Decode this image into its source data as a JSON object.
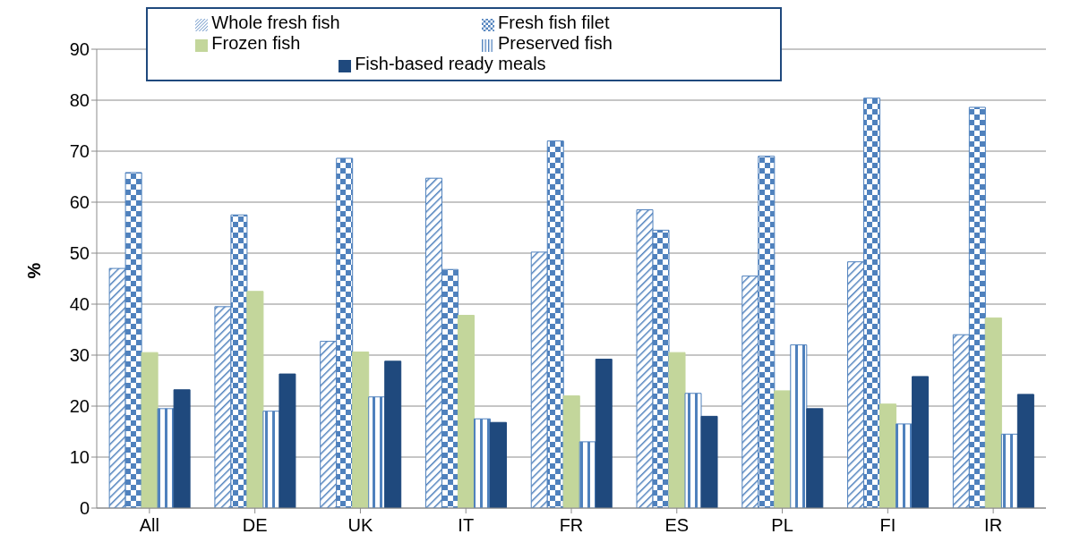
{
  "chart_data": {
    "type": "bar",
    "ylabel": "%",
    "categories": [
      "All",
      "DE",
      "UK",
      "IT",
      "FR",
      "ES",
      "PL",
      "FI",
      "IR"
    ],
    "series": [
      {
        "name": "Whole fresh fish",
        "color": "#4f81bd",
        "values": [
          47,
          39.5,
          32.7,
          64.7,
          50.2,
          58.5,
          45.5,
          48.3,
          34
        ]
      },
      {
        "name": "Fresh fish filet",
        "color": "#4f81bd",
        "values": [
          65.8,
          57.5,
          68.6,
          46.8,
          72,
          54.5,
          69,
          80.4,
          78.6
        ]
      },
      {
        "name": "Frozen fish",
        "color": "#c3d69b",
        "values": [
          30.5,
          42.5,
          30.6,
          37.8,
          22,
          30.5,
          23,
          20.4,
          37.3
        ]
      },
      {
        "name": "Preserved fish",
        "color": "#4f81bd",
        "values": [
          19.5,
          19,
          21.8,
          17.5,
          13,
          22.5,
          32,
          16.5,
          14.5
        ]
      },
      {
        "name": "Fish-based ready meals",
        "color": "#1f497d",
        "values": [
          23.2,
          26.3,
          28.8,
          16.8,
          29.2,
          18,
          19.5,
          25.8,
          22.3
        ]
      }
    ],
    "ylim": [
      0,
      90
    ],
    "yticks": [
      0,
      10,
      20,
      30,
      40,
      50,
      60,
      70,
      80,
      90
    ],
    "grid": "y",
    "legend": "top"
  }
}
